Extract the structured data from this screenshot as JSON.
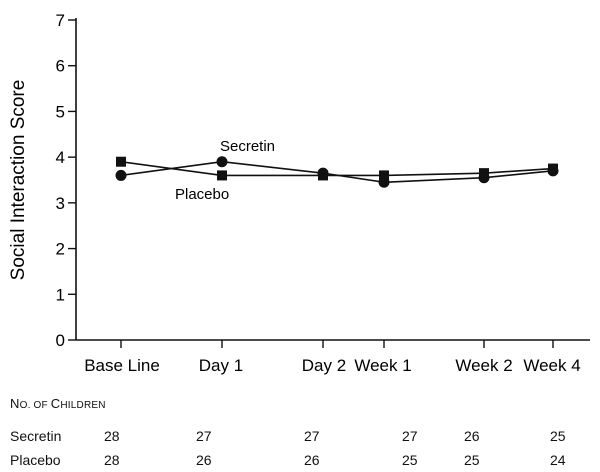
{
  "chart_data": {
    "type": "line",
    "categories": [
      "Base Line",
      "Day 1",
      "Day 2",
      "Week 1",
      "Week 2",
      "Week 4"
    ],
    "ylabel": "Social Interaction Score",
    "xlabel": "",
    "ylim": [
      0,
      7
    ],
    "yticks": [
      0,
      1,
      2,
      3,
      4,
      5,
      6,
      7
    ],
    "grid": false,
    "series": [
      {
        "name": "Secretin",
        "marker": "square",
        "values": [
          3.9,
          3.6,
          3.6,
          3.6,
          3.65,
          3.75
        ]
      },
      {
        "name": "Placebo",
        "marker": "circle",
        "values": [
          3.6,
          3.9,
          3.65,
          3.45,
          3.55,
          3.7
        ]
      }
    ],
    "annotations": [
      "Secretin",
      "Placebo"
    ]
  },
  "table": {
    "caption_parts": [
      {
        "text": "N",
        "size": "big"
      },
      {
        "text": "O. OF ",
        "size": "small"
      },
      {
        "text": "C",
        "size": "big"
      },
      {
        "text": "HILDREN",
        "size": "small"
      }
    ],
    "rows": [
      {
        "label": "Secretin",
        "values": [
          "28",
          "27",
          "27",
          "27",
          "26",
          "25"
        ]
      },
      {
        "label": "Placebo",
        "values": [
          "28",
          "26",
          "26",
          "25",
          "25",
          "24"
        ]
      }
    ]
  }
}
